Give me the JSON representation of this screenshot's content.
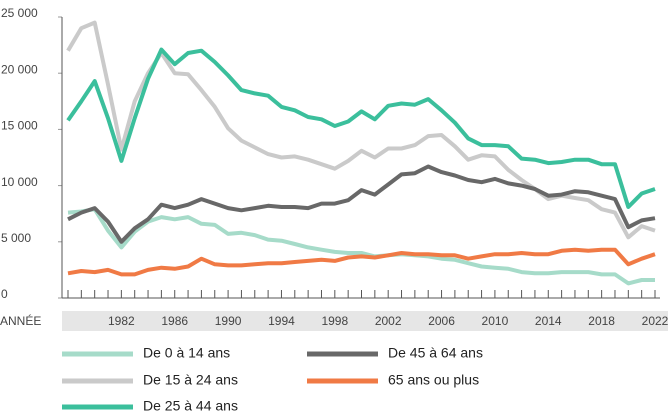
{
  "chart_data": {
    "type": "line",
    "x": [
      1978,
      1979,
      1980,
      1981,
      1982,
      1983,
      1984,
      1985,
      1986,
      1987,
      1988,
      1989,
      1990,
      1991,
      1992,
      1993,
      1994,
      1995,
      1996,
      1997,
      1998,
      1999,
      2000,
      2001,
      2002,
      2003,
      2004,
      2005,
      2006,
      2007,
      2008,
      2009,
      2010,
      2011,
      2012,
      2013,
      2014,
      2015,
      2016,
      2017,
      2018,
      2019,
      2020,
      2021,
      2022
    ],
    "xlabel": "ANNÉE",
    "xlim": [
      1978,
      2022
    ],
    "xticks": [
      1982,
      1986,
      1990,
      1994,
      1998,
      2002,
      2006,
      2010,
      2014,
      2018,
      2022
    ],
    "ylim": [
      0,
      25000
    ],
    "yticks": [
      0,
      {
        "value": 5000,
        "label": "5 000"
      },
      {
        "value": 10000,
        "label": "10 000"
      },
      {
        "value": 15000,
        "label": "15 000"
      },
      {
        "value": 20000,
        "label": "20 000"
      },
      {
        "value": 25000,
        "label": "25 000"
      }
    ],
    "grid": false,
    "series": [
      {
        "name": "De 0 à 14 ans",
        "color": "#a6dbc9",
        "values": [
          7600,
          7700,
          7900,
          6000,
          4500,
          5900,
          6800,
          7200,
          7000,
          7200,
          6600,
          6500,
          5700,
          5800,
          5600,
          5200,
          5100,
          4800,
          4500,
          4300,
          4100,
          4000,
          4000,
          3700,
          3800,
          3900,
          3800,
          3700,
          3500,
          3400,
          3100,
          2800,
          2700,
          2600,
          2300,
          2200,
          2200,
          2300,
          2300,
          2300,
          2100,
          2100,
          1300,
          1600,
          1600
        ]
      },
      {
        "name": "De 15 à 24 ans",
        "color": "#cacaca",
        "values": [
          22000,
          24000,
          24500,
          19000,
          13200,
          17500,
          20000,
          21800,
          20000,
          19900,
          18500,
          17000,
          15100,
          14000,
          13400,
          12800,
          12500,
          12600,
          12300,
          11900,
          11500,
          12200,
          13100,
          12500,
          13300,
          13300,
          13600,
          14400,
          14500,
          13500,
          12300,
          12700,
          12600,
          11400,
          10500,
          9700,
          8800,
          9100,
          8900,
          8700,
          7900,
          7600,
          5400,
          6400,
          6000
        ]
      },
      {
        "name": "De 25 à 44 ans",
        "color": "#3bbf9c",
        "values": [
          15800,
          17500,
          19300,
          16000,
          12200,
          16000,
          19500,
          22100,
          20800,
          21800,
          22000,
          21000,
          19800,
          18500,
          18200,
          18000,
          17000,
          16700,
          16100,
          15900,
          15300,
          15700,
          16600,
          15900,
          17100,
          17300,
          17200,
          17700,
          16700,
          15600,
          14200,
          13600,
          13600,
          13500,
          12400,
          12300,
          12000,
          12100,
          12300,
          12300,
          11900,
          11900,
          8100,
          9300,
          9700
        ]
      },
      {
        "name": "De 45 à 64 ans",
        "color": "#686868",
        "values": [
          7000,
          7600,
          8000,
          6800,
          5000,
          6200,
          7000,
          8300,
          8000,
          8300,
          8800,
          8400,
          8000,
          7800,
          8000,
          8200,
          8100,
          8100,
          8000,
          8400,
          8400,
          8700,
          9600,
          9200,
          10100,
          11000,
          11100,
          11700,
          11200,
          10900,
          10500,
          10300,
          10600,
          10200,
          10000,
          9700,
          9100,
          9200,
          9500,
          9400,
          9100,
          8800,
          6300,
          6900,
          7100
        ]
      },
      {
        "name": "65 ans ou plus",
        "color": "#f07a45",
        "values": [
          2200,
          2400,
          2300,
          2500,
          2100,
          2100,
          2500,
          2700,
          2600,
          2800,
          3500,
          3000,
          2900,
          2900,
          3000,
          3100,
          3100,
          3200,
          3300,
          3400,
          3300,
          3600,
          3700,
          3600,
          3800,
          4000,
          3900,
          3900,
          3800,
          3800,
          3500,
          3700,
          3900,
          3900,
          4000,
          3900,
          3900,
          4200,
          4300,
          4200,
          4300,
          4300,
          3000,
          3500,
          3900
        ]
      }
    ]
  }
}
